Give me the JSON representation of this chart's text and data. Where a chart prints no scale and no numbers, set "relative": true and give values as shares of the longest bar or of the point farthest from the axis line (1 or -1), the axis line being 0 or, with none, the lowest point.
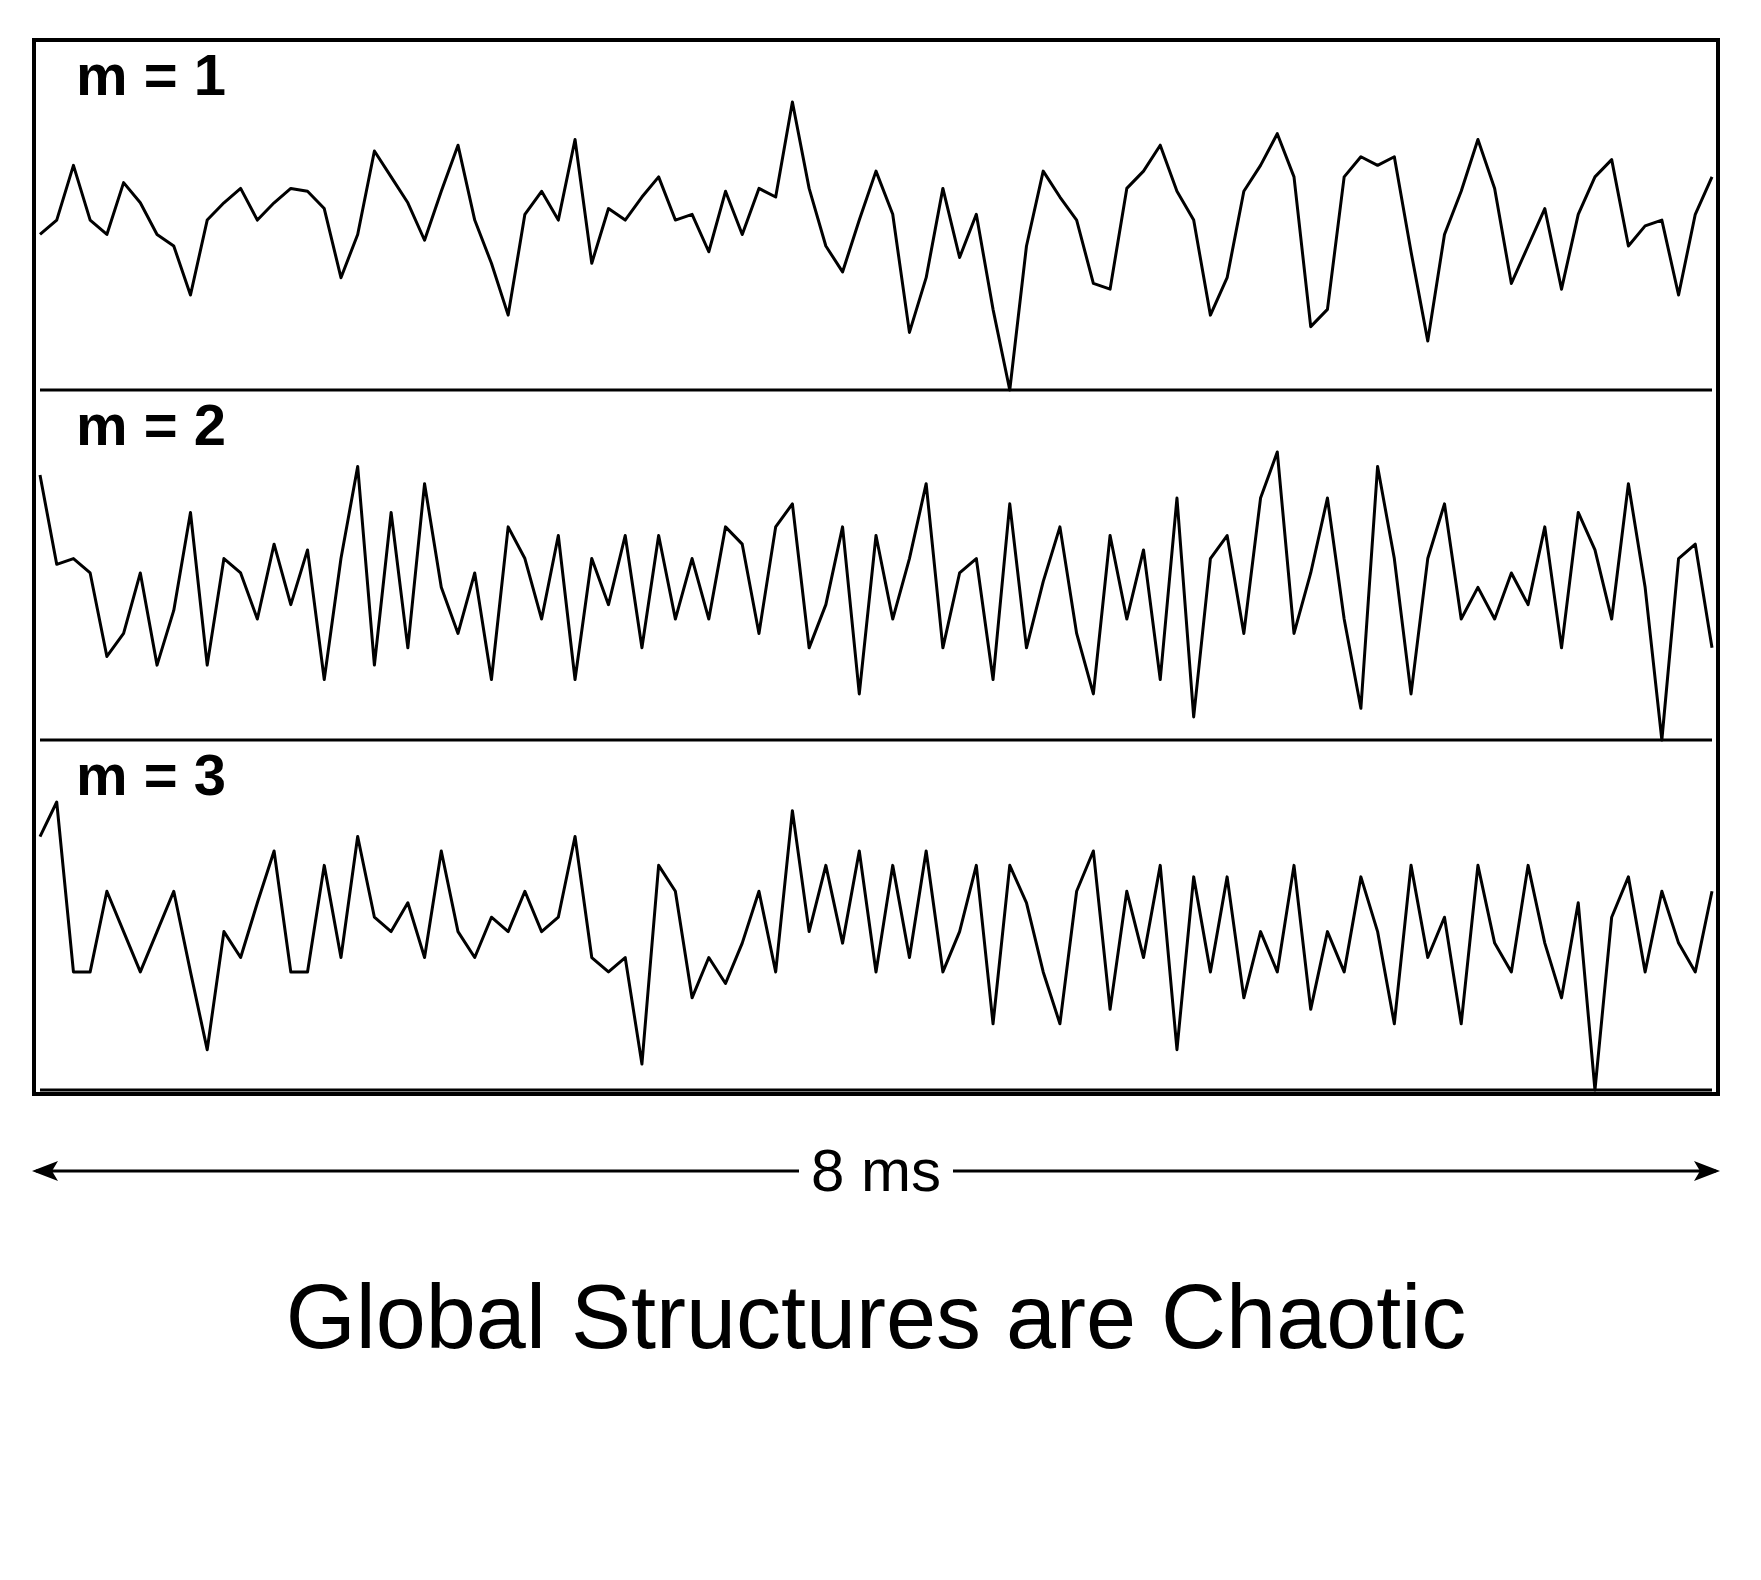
{
  "chart_data": [
    {
      "type": "line",
      "relative": true,
      "tick_labels": false,
      "marker": "none",
      "categories": [
        null,
        null,
        null,
        null,
        null,
        null,
        null,
        null,
        null,
        null,
        null,
        null,
        null,
        null,
        null,
        null,
        null,
        null,
        null,
        null,
        null,
        null,
        null,
        null,
        null,
        null,
        null,
        null,
        null,
        null,
        null,
        null,
        null,
        null,
        null,
        null,
        null,
        null,
        null,
        null,
        null,
        null,
        null,
        null,
        null,
        null,
        null,
        null,
        null,
        null,
        null,
        null,
        null,
        null,
        null,
        null,
        null,
        null,
        null,
        null,
        null,
        null,
        null,
        null,
        null,
        null,
        null,
        null,
        null,
        null,
        null,
        null,
        null,
        null,
        null,
        null,
        null,
        null,
        null,
        null,
        null,
        null,
        null,
        null,
        null,
        null,
        null,
        null,
        null,
        null,
        null,
        null,
        null,
        null,
        null,
        null,
        null,
        null,
        null,
        null,
        null
      ],
      "series": [
        {
          "name": "m = 1",
          "color": "#000000",
          "values": [
            0.54,
            0.59,
            0.78,
            0.59,
            0.54,
            0.72,
            0.65,
            0.54,
            0.5,
            0.33,
            0.59,
            0.65,
            0.7,
            0.59,
            0.65,
            0.7,
            0.69,
            0.63,
            0.39,
            0.54,
            0.83,
            0.74,
            0.65,
            0.52,
            0.69,
            0.85,
            0.59,
            0.44,
            0.26,
            0.61,
            0.69,
            0.59,
            0.87,
            0.44,
            0.63,
            0.59,
            0.67,
            0.74,
            0.59,
            0.61,
            0.48,
            0.69,
            0.54,
            0.7,
            0.67,
            1,
            0.7,
            0.5,
            0.41,
            0.59,
            0.76,
            0.61,
            0.2,
            0.39,
            0.7,
            0.46,
            0.61,
            0.28,
            0,
            0.5,
            0.76,
            0.67,
            0.59,
            0.37,
            0.35,
            0.7,
            0.76,
            0.85,
            0.69,
            0.59,
            0.26,
            0.39,
            0.69,
            0.78,
            0.89,
            0.74,
            0.22,
            0.28,
            0.74,
            0.81,
            0.78,
            0.81,
            0.48,
            0.17,
            0.54,
            0.69,
            0.87,
            0.7,
            0.37,
            0.5,
            0.63,
            0.35,
            0.61,
            0.74,
            0.8,
            0.5,
            0.57,
            0.59,
            0.33,
            0.61,
            0.74
          ]
        }
      ]
    },
    {
      "type": "line",
      "relative": true,
      "tick_labels": false,
      "marker": "none",
      "categories": [
        null,
        null,
        null,
        null,
        null,
        null,
        null,
        null,
        null,
        null,
        null,
        null,
        null,
        null,
        null,
        null,
        null,
        null,
        null,
        null,
        null,
        null,
        null,
        null,
        null,
        null,
        null,
        null,
        null,
        null,
        null,
        null,
        null,
        null,
        null,
        null,
        null,
        null,
        null,
        null,
        null,
        null,
        null,
        null,
        null,
        null,
        null,
        null,
        null,
        null,
        null,
        null,
        null,
        null,
        null,
        null,
        null,
        null,
        null,
        null,
        null,
        null,
        null,
        null,
        null,
        null,
        null,
        null,
        null,
        null,
        null,
        null,
        null,
        null,
        null,
        null,
        null,
        null,
        null,
        null,
        null,
        null,
        null,
        null,
        null,
        null,
        null,
        null,
        null,
        null,
        null,
        null,
        null,
        null,
        null,
        null,
        null,
        null,
        null,
        null,
        null
      ],
      "series": [
        {
          "name": "m = 2",
          "color": "#000000",
          "values": [
            0.92,
            0.61,
            0.63,
            0.58,
            0.29,
            0.37,
            0.58,
            0.26,
            0.45,
            0.79,
            0.26,
            0.63,
            0.58,
            0.42,
            0.68,
            0.47,
            0.66,
            0.21,
            0.63,
            0.95,
            0.26,
            0.79,
            0.32,
            0.89,
            0.53,
            0.37,
            0.58,
            0.21,
            0.74,
            0.63,
            0.42,
            0.71,
            0.21,
            0.63,
            0.47,
            0.71,
            0.32,
            0.71,
            0.42,
            0.63,
            0.42,
            0.74,
            0.68,
            0.37,
            0.74,
            0.82,
            0.32,
            0.47,
            0.74,
            0.16,
            0.71,
            0.42,
            0.63,
            0.89,
            0.32,
            0.58,
            0.63,
            0.21,
            0.82,
            0.32,
            0.55,
            0.74,
            0.37,
            0.16,
            0.71,
            0.42,
            0.66,
            0.21,
            0.84,
            0.08,
            0.63,
            0.71,
            0.37,
            0.84,
            1,
            0.37,
            0.58,
            0.84,
            0.42,
            0.11,
            0.95,
            0.63,
            0.16,
            0.63,
            0.82,
            0.42,
            0.53,
            0.42,
            0.58,
            0.47,
            0.74,
            0.32,
            0.79,
            0.66,
            0.42,
            0.89,
            0.53,
            0,
            0.63,
            0.68,
            0.32
          ]
        }
      ]
    },
    {
      "type": "line",
      "relative": true,
      "tick_labels": false,
      "marker": "none",
      "title": "Global Structures are Chaotic",
      "annotations": [
        "8 ms"
      ],
      "categories": [
        null,
        null,
        null,
        null,
        null,
        null,
        null,
        null,
        null,
        null,
        null,
        null,
        null,
        null,
        null,
        null,
        null,
        null,
        null,
        null,
        null,
        null,
        null,
        null,
        null,
        null,
        null,
        null,
        null,
        null,
        null,
        null,
        null,
        null,
        null,
        null,
        null,
        null,
        null,
        null,
        null,
        null,
        null,
        null,
        null,
        null,
        null,
        null,
        null,
        null,
        null,
        null,
        null,
        null,
        null,
        null,
        null,
        null,
        null,
        null,
        null,
        null,
        null,
        null,
        null,
        null,
        null,
        null,
        null,
        null,
        null,
        null,
        null,
        null,
        null,
        null,
        null,
        null,
        null,
        null,
        null,
        null,
        null,
        null,
        null,
        null,
        null,
        null,
        null,
        null,
        null,
        null,
        null,
        null,
        null,
        null,
        null,
        null,
        null,
        null,
        null
      ],
      "series": [
        {
          "name": "m = 3",
          "color": "#000000",
          "values": [
            0.88,
            1,
            0.41,
            0.41,
            0.69,
            0.55,
            0.41,
            0.55,
            0.69,
            0.41,
            0.14,
            0.55,
            0.46,
            0.65,
            0.83,
            0.41,
            0.41,
            0.78,
            0.46,
            0.88,
            0.6,
            0.55,
            0.65,
            0.46,
            0.83,
            0.55,
            0.46,
            0.6,
            0.55,
            0.69,
            0.55,
            0.6,
            0.88,
            0.46,
            0.41,
            0.46,
            0.09,
            0.78,
            0.69,
            0.32,
            0.46,
            0.37,
            0.51,
            0.69,
            0.41,
            0.97,
            0.55,
            0.78,
            0.51,
            0.83,
            0.41,
            0.78,
            0.46,
            0.83,
            0.41,
            0.55,
            0.78,
            0.23,
            0.78,
            0.65,
            0.41,
            0.23,
            0.69,
            0.83,
            0.28,
            0.69,
            0.46,
            0.78,
            0.14,
            0.74,
            0.41,
            0.74,
            0.32,
            0.55,
            0.41,
            0.78,
            0.28,
            0.55,
            0.41,
            0.74,
            0.55,
            0.23,
            0.78,
            0.46,
            0.6,
            0.23,
            0.78,
            0.51,
            0.41,
            0.78,
            0.51,
            0.32,
            0.65,
            0,
            0.6,
            0.74,
            0.41,
            0.69,
            0.51,
            0.41,
            0.69
          ]
        }
      ]
    }
  ]
}
